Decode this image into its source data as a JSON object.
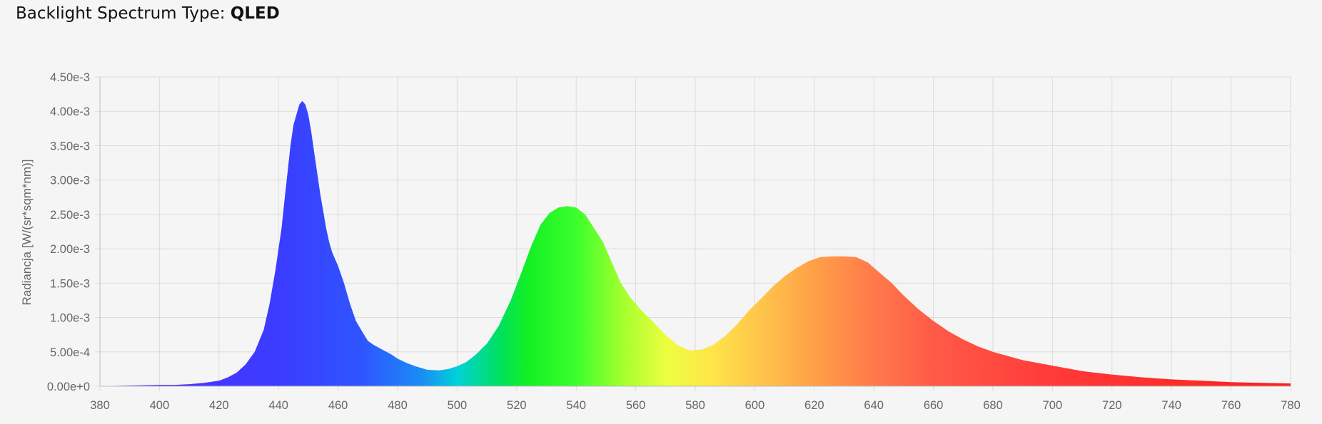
{
  "header": {
    "label": "Backlight Spectrum Type:",
    "value": "QLED"
  },
  "chart_data": {
    "type": "area",
    "title": "",
    "xlabel": "",
    "ylabel": "Radiancja [W/(sr*sqm*nm)]",
    "xlim": [
      380,
      780
    ],
    "ylim": [
      0,
      0.0045
    ],
    "grid": true,
    "x_ticks": [
      "380",
      "400",
      "420",
      "440",
      "460",
      "480",
      "500",
      "520",
      "540",
      "560",
      "580",
      "600",
      "620",
      "640",
      "660",
      "680",
      "700",
      "720",
      "740",
      "760",
      "780"
    ],
    "y_ticks": [
      "0.00e+0",
      "5.00e-4",
      "1.00e-3",
      "1.50e-3",
      "2.00e-3",
      "2.50e-3",
      "3.00e-3",
      "3.50e-3",
      "4.00e-3",
      "4.50e-3"
    ],
    "series": [
      {
        "name": "",
        "x": [
          380,
          390,
          400,
          405,
          410,
          415,
          420,
          423,
          426,
          429,
          432,
          435,
          437,
          439,
          441,
          442,
          443,
          444,
          445,
          446,
          447,
          448,
          449,
          450,
          451,
          452,
          453,
          454,
          455,
          456,
          457,
          458,
          460,
          462,
          464,
          466,
          468,
          470,
          472,
          475,
          478,
          480,
          483,
          486,
          490,
          494,
          497,
          500,
          503,
          506,
          510,
          514,
          518,
          522,
          525,
          528,
          531,
          534,
          537,
          540,
          543,
          546,
          549,
          552,
          555,
          558,
          562,
          566,
          570,
          574,
          578,
          582,
          586,
          590,
          594,
          598,
          602,
          606,
          610,
          614,
          618,
          622,
          626,
          630,
          634,
          638,
          642,
          646,
          650,
          655,
          660,
          665,
          670,
          675,
          680,
          690,
          700,
          710,
          720,
          730,
          740,
          750,
          760,
          770,
          780
        ],
        "y": [
          0,
          1e-05,
          2e-05,
          2e-05,
          3e-05,
          5e-05,
          8e-05,
          0.00013,
          0.0002,
          0.00032,
          0.0005,
          0.00082,
          0.0012,
          0.0017,
          0.0023,
          0.0027,
          0.0031,
          0.0035,
          0.0038,
          0.00395,
          0.0041,
          0.00415,
          0.0041,
          0.00395,
          0.0037,
          0.0034,
          0.0031,
          0.0028,
          0.00255,
          0.0023,
          0.0021,
          0.00195,
          0.00175,
          0.0015,
          0.0012,
          0.00095,
          0.0008,
          0.00066,
          0.0006,
          0.00053,
          0.00046,
          0.0004,
          0.00034,
          0.00029,
          0.00024,
          0.00023,
          0.00025,
          0.00029,
          0.00035,
          0.00045,
          0.00062,
          0.00088,
          0.00125,
          0.0017,
          0.00205,
          0.00235,
          0.00252,
          0.0026,
          0.00262,
          0.0026,
          0.0025,
          0.0023,
          0.0021,
          0.0018,
          0.0015,
          0.0013,
          0.0011,
          0.00093,
          0.00075,
          0.0006,
          0.00052,
          0.00053,
          0.0006,
          0.00073,
          0.0009,
          0.0011,
          0.00127,
          0.00145,
          0.0016,
          0.00172,
          0.00182,
          0.00188,
          0.00189,
          0.00189,
          0.00188,
          0.0018,
          0.00165,
          0.0015,
          0.00132,
          0.00112,
          0.00095,
          0.0008,
          0.00068,
          0.00058,
          0.0005,
          0.00038,
          0.0003,
          0.00022,
          0.00017,
          0.00013,
          0.0001,
          8e-05,
          6e-05,
          5e-05,
          4e-05
        ]
      }
    ]
  }
}
